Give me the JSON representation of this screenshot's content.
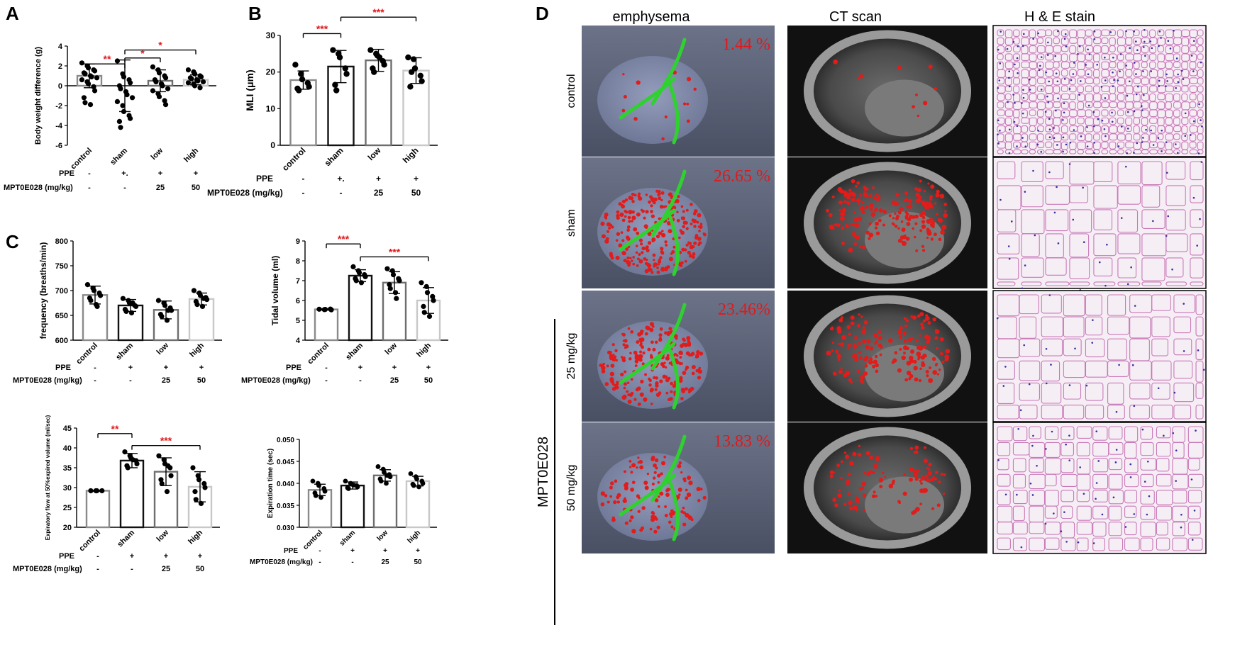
{
  "panels": {
    "A": {
      "letter": "A"
    },
    "B": {
      "letter": "B"
    },
    "C": {
      "letter": "C"
    },
    "D": {
      "letter": "D"
    }
  },
  "treatment_rows": {
    "ppe_label": "PPE",
    "drug_label": "MPT0E028 (mg/kg)",
    "ppe_values_dot": [
      "-",
      "+.",
      "+",
      "+"
    ],
    "ppe_values": [
      "-",
      "+",
      "+",
      "+"
    ],
    "drug_values": [
      "-",
      "-",
      "25",
      "50"
    ]
  },
  "chart_data": [
    {
      "id": "A",
      "type": "bar",
      "ylabel": "Body weight difference (g)",
      "categories": [
        "control",
        "sham",
        "low",
        "high"
      ],
      "ylim": [
        -6,
        4
      ],
      "yticks": [
        "-6",
        "-4",
        "-2",
        "0",
        "2",
        "4"
      ],
      "means": [
        1.0,
        0.0,
        0.5,
        0.6
      ],
      "sd": [
        1.2,
        2.6,
        1.1,
        0.5
      ],
      "points": [
        [
          2.3,
          2.0,
          1.8,
          1.6,
          1.5,
          1.3,
          1.2,
          1.0,
          0.9,
          0.8,
          0.6,
          0.4,
          0.2,
          -0.1,
          -0.5,
          -1.2,
          -1.7,
          -1.9
        ],
        [
          2.5,
          1.2,
          0.9,
          0.6,
          0.3,
          0.0,
          -0.3,
          -0.6,
          -0.9,
          -1.2,
          -1.6,
          -2.0,
          -2.6,
          -3.0,
          -3.3,
          -3.6,
          -4.2
        ],
        [
          1.9,
          1.6,
          1.3,
          1.0,
          0.8,
          0.6,
          0.4,
          0.2,
          0.0,
          -0.3,
          -0.5,
          -0.8,
          -1.1,
          -1.5,
          -1.9
        ],
        [
          1.6,
          1.4,
          1.2,
          1.0,
          0.9,
          0.8,
          0.7,
          0.6,
          0.5,
          0.4,
          0.3,
          0.2,
          0.0,
          -0.2
        ]
      ],
      "sig": [
        {
          "from": 0,
          "to": 1,
          "label": "**",
          "y": 2.2
        },
        {
          "from": 1,
          "to": 2,
          "label": "*",
          "y": 2.8
        },
        {
          "from": 1,
          "to": 3,
          "label": "*",
          "y": 3.6
        }
      ]
    },
    {
      "id": "B",
      "type": "bar",
      "ylabel": "MLI (μm)",
      "categories": [
        "control",
        "sham",
        "low",
        "high"
      ],
      "ylim": [
        0,
        30
      ],
      "yticks": [
        "0",
        "10",
        "20",
        "30"
      ],
      "means": [
        17.8,
        21.5,
        23.2,
        20.4
      ],
      "sd": [
        2.5,
        4.4,
        3.0,
        3.5
      ],
      "points": [
        [
          22.0,
          19.5,
          18.0,
          17.0,
          16.0,
          15.5,
          15.0
        ],
        [
          26.0,
          25.0,
          24.0,
          21.0,
          19.5,
          16.5,
          15.0
        ],
        [
          26.0,
          25.0,
          24.5,
          23.0,
          22.0,
          21.0,
          20.0,
          24.0
        ],
        [
          24.0,
          23.5,
          21.0,
          19.0,
          17.5,
          16.0,
          20.0
        ]
      ],
      "sig": [
        {
          "from": 0,
          "to": 1,
          "label": "***",
          "y": 30.5
        },
        {
          "from": 1,
          "to": 3,
          "label": "***",
          "y": 35.0
        }
      ]
    },
    {
      "id": "C1",
      "type": "bar",
      "ylabel": "frequency (breaths/min)",
      "categories": [
        "control",
        "sham",
        "low",
        "high"
      ],
      "ylim": [
        600,
        800
      ],
      "yticks": [
        "600",
        "650",
        "700",
        "750",
        "800"
      ],
      "means": [
        691,
        670,
        661,
        683
      ],
      "sd": [
        18,
        12,
        18,
        12
      ],
      "points": [
        [
          712,
          705,
          700,
          695,
          690,
          685,
          680,
          672,
          668
        ],
        [
          684,
          680,
          675,
          670,
          668,
          662,
          658,
          655,
          675
        ],
        [
          680,
          675,
          670,
          665,
          660,
          652,
          648,
          640,
          660
        ],
        [
          700,
          695,
          690,
          686,
          682,
          678,
          672,
          668,
          684
        ]
      ],
      "sig": []
    },
    {
      "id": "C2",
      "type": "bar",
      "ylabel": "Tidal volume (ml)",
      "categories": [
        "control",
        "sham",
        "low",
        "high"
      ],
      "ylim": [
        4,
        9
      ],
      "yticks": [
        "4",
        "5",
        "6",
        "7",
        "8",
        "9"
      ],
      "means": [
        5.55,
        7.25,
        6.9,
        6.0
      ],
      "sd": [
        0.03,
        0.3,
        0.55,
        0.65
      ],
      "points": [
        [
          5.56,
          5.54,
          5.55,
          5.57,
          5.53
        ],
        [
          7.7,
          7.5,
          7.4,
          7.3,
          7.2,
          7.1,
          7.0,
          6.9
        ],
        [
          7.6,
          7.5,
          7.3,
          7.1,
          7.0,
          6.8,
          6.6,
          6.4,
          6.1
        ],
        [
          6.9,
          6.7,
          6.4,
          6.2,
          6.0,
          5.7,
          5.4,
          5.2
        ]
      ],
      "sig": [
        {
          "from": 0,
          "to": 1,
          "label": "***",
          "y": 8.85
        },
        {
          "from": 1,
          "to": 3,
          "label": "***",
          "y": 8.2
        }
      ]
    },
    {
      "id": "C3",
      "type": "bar",
      "ylabel": "Expiratory flow at 50%expired volume (ml/sec)",
      "categories": [
        "control",
        "sham",
        "low",
        "high"
      ],
      "ylim": [
        20,
        45
      ],
      "yticks": [
        "20",
        "25",
        "30",
        "35",
        "40",
        "45"
      ],
      "means": [
        29.2,
        36.8,
        34.0,
        30.2
      ],
      "sd": [
        0.1,
        1.8,
        3.5,
        3.8
      ],
      "points": [
        [
          29.2,
          29.2,
          29.2,
          29.2
        ],
        [
          39.0,
          38.0,
          37.5,
          36.8,
          36.0,
          35.5,
          35.0,
          37.0
        ],
        [
          38.0,
          37.0,
          36.0,
          35.0,
          33.0,
          32.0,
          31.0,
          29.0,
          35.5
        ],
        [
          35.0,
          33.0,
          32.0,
          31.0,
          30.0,
          29.0,
          27.0,
          26.0
        ]
      ],
      "sig": [
        {
          "from": 0,
          "to": 1,
          "label": "**",
          "y": 43.6
        },
        {
          "from": 1,
          "to": 3,
          "label": "***",
          "y": 40.6
        }
      ]
    },
    {
      "id": "C4",
      "type": "bar",
      "ylabel": "Expiration time (sec)",
      "categories": [
        "control",
        "sham",
        "low",
        "high"
      ],
      "ylim": [
        0.03,
        0.05
      ],
      "yticks": [
        "0.030",
        "0.035",
        "0.040",
        "0.045",
        "0.050"
      ],
      "means": [
        0.0385,
        0.0395,
        0.0418,
        0.0405
      ],
      "sd": [
        0.0013,
        0.0008,
        0.0013,
        0.0011
      ],
      "points": [
        [
          0.0405,
          0.04,
          0.0395,
          0.0388,
          0.0382,
          0.0378,
          0.0372,
          0.0368
        ],
        [
          0.0405,
          0.04,
          0.0398,
          0.0395,
          0.0392,
          0.039,
          0.0388,
          0.0396
        ],
        [
          0.0438,
          0.0432,
          0.0425,
          0.042,
          0.0415,
          0.041,
          0.0405,
          0.04,
          0.0418
        ],
        [
          0.0422,
          0.0415,
          0.041,
          0.0405,
          0.04,
          0.0398,
          0.0395,
          0.0392
        ]
      ],
      "sig": []
    }
  ],
  "panel_d": {
    "columns": [
      "emphysema",
      "CT scan",
      "H & E stain"
    ],
    "rows": [
      "control",
      "sham",
      "25 mg/kg",
      "50 mg/kg"
    ],
    "group_label": "MPT0E028",
    "percentages": [
      "1.44 %",
      "26.65 %",
      "23.46%",
      "13.83 %"
    ],
    "emphysema_level": [
      0.0144,
      0.2665,
      0.2346,
      0.1383
    ]
  },
  "colors": {
    "bar_control": "#8a8a8a",
    "bar_sham": "#111111",
    "bar_low": "#6e6e6e",
    "bar_high": "#c8c8c8",
    "significance": "#e0191c",
    "emphysema_bg": "#5a6278",
    "airway_green": "#2fd12f",
    "emphysema_red": "#e21b1b"
  }
}
